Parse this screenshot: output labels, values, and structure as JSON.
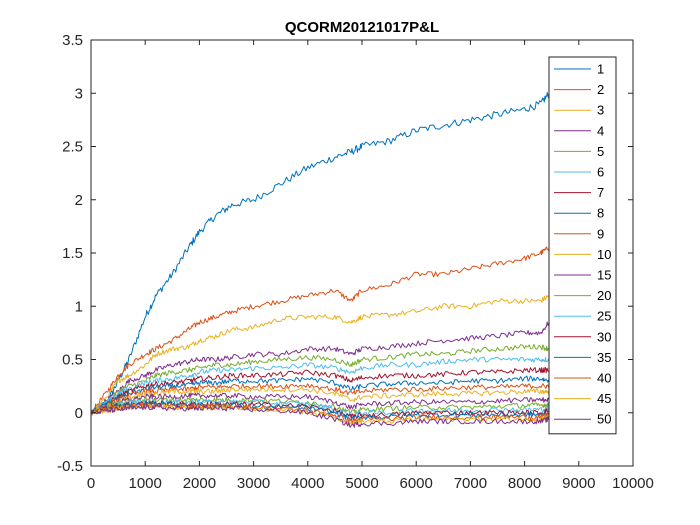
{
  "chart_data": {
    "type": "line",
    "title": "QCORM20121017P&L",
    "xlabel": "",
    "ylabel": "",
    "xlim": [
      0,
      10000
    ],
    "ylim": [
      -0.5,
      3.5
    ],
    "x_ticks": [
      0,
      1000,
      2000,
      3000,
      4000,
      5000,
      6000,
      7000,
      8000,
      9000,
      10000
    ],
    "y_ticks": [
      -0.5,
      0,
      0.5,
      1,
      1.5,
      2,
      2.5,
      3,
      3.5
    ],
    "x_tick_labels": [
      "0",
      "1000",
      "2000",
      "3000",
      "4000",
      "5000",
      "6000",
      "7000",
      "8000",
      "9000",
      "10000"
    ],
    "y_tick_labels": [
      "-0.5",
      "0",
      "0.5",
      "1",
      "1.5",
      "2",
      "2.5",
      "3",
      "3.5"
    ],
    "grid": false,
    "legend_position": "top-right",
    "x": [
      0,
      300,
      500,
      700,
      1000,
      1200,
      1500,
      1800,
      2000,
      2300,
      2600,
      3000,
      3500,
      4000,
      4500,
      4800,
      5000,
      5500,
      6000,
      6500,
      7000,
      7500,
      8000,
      8300,
      8450
    ],
    "series": [
      {
        "name": "1",
        "color": "#0072BD",
        "values": [
          0,
          0.1,
          0.3,
          0.5,
          0.9,
          1.1,
          1.3,
          1.55,
          1.7,
          1.85,
          1.95,
          2.0,
          2.15,
          2.3,
          2.4,
          2.45,
          2.5,
          2.55,
          2.65,
          2.7,
          2.75,
          2.8,
          2.85,
          2.9,
          3.0
        ]
      },
      {
        "name": "2",
        "color": "#D95319",
        "values": [
          0,
          0.2,
          0.35,
          0.45,
          0.55,
          0.6,
          0.68,
          0.78,
          0.85,
          0.9,
          0.95,
          1.0,
          1.05,
          1.1,
          1.15,
          1.05,
          1.15,
          1.2,
          1.3,
          1.3,
          1.35,
          1.4,
          1.45,
          1.5,
          1.55
        ]
      },
      {
        "name": "3",
        "color": "#EDB120",
        "values": [
          0,
          0.15,
          0.3,
          0.35,
          0.45,
          0.55,
          0.6,
          0.62,
          0.68,
          0.72,
          0.78,
          0.8,
          0.88,
          0.9,
          0.9,
          0.85,
          0.9,
          0.92,
          0.95,
          1.0,
          1.0,
          1.05,
          1.05,
          1.05,
          1.1
        ]
      },
      {
        "name": "4",
        "color": "#7E2F8E",
        "values": [
          0,
          0.12,
          0.2,
          0.3,
          0.35,
          0.4,
          0.45,
          0.48,
          0.5,
          0.5,
          0.52,
          0.55,
          0.55,
          0.6,
          0.6,
          0.55,
          0.6,
          0.62,
          0.65,
          0.68,
          0.7,
          0.72,
          0.75,
          0.75,
          0.85
        ]
      },
      {
        "name": "5",
        "color": "#77AC30",
        "values": [
          0,
          0.1,
          0.2,
          0.25,
          0.3,
          0.35,
          0.38,
          0.4,
          0.42,
          0.45,
          0.45,
          0.48,
          0.5,
          0.52,
          0.5,
          0.45,
          0.5,
          0.52,
          0.55,
          0.55,
          0.58,
          0.6,
          0.62,
          0.62,
          0.6
        ]
      },
      {
        "name": "6",
        "color": "#4DBEEE",
        "values": [
          0,
          0.1,
          0.18,
          0.22,
          0.28,
          0.3,
          0.32,
          0.35,
          0.38,
          0.4,
          0.4,
          0.42,
          0.42,
          0.45,
          0.42,
          0.38,
          0.42,
          0.45,
          0.45,
          0.48,
          0.5,
          0.5,
          0.5,
          0.5,
          0.5
        ]
      },
      {
        "name": "7",
        "color": "#A2142F",
        "values": [
          0,
          0.08,
          0.15,
          0.2,
          0.25,
          0.27,
          0.28,
          0.3,
          0.32,
          0.33,
          0.35,
          0.35,
          0.36,
          0.38,
          0.35,
          0.3,
          0.33,
          0.35,
          0.35,
          0.36,
          0.38,
          0.38,
          0.4,
          0.4,
          0.4
        ]
      },
      {
        "name": "8",
        "color": "#0072BD",
        "values": [
          0,
          0.08,
          0.14,
          0.18,
          0.22,
          0.24,
          0.25,
          0.26,
          0.28,
          0.28,
          0.3,
          0.3,
          0.3,
          0.32,
          0.28,
          0.22,
          0.25,
          0.27,
          0.28,
          0.28,
          0.3,
          0.3,
          0.32,
          0.32,
          0.3
        ]
      },
      {
        "name": "9",
        "color": "#D95319",
        "values": [
          0,
          0.07,
          0.12,
          0.16,
          0.2,
          0.2,
          0.22,
          0.22,
          0.24,
          0.24,
          0.25,
          0.25,
          0.25,
          0.26,
          0.22,
          0.18,
          0.2,
          0.22,
          0.22,
          0.23,
          0.24,
          0.24,
          0.25,
          0.25,
          0.25
        ]
      },
      {
        "name": "10",
        "color": "#EDB120",
        "values": [
          0,
          0.06,
          0.1,
          0.14,
          0.18,
          0.18,
          0.2,
          0.2,
          0.2,
          0.2,
          0.22,
          0.22,
          0.22,
          0.22,
          0.18,
          0.12,
          0.15,
          0.16,
          0.17,
          0.18,
          0.18,
          0.19,
          0.2,
          0.2,
          0.2
        ]
      },
      {
        "name": "15",
        "color": "#7E2F8E",
        "values": [
          0,
          0.05,
          0.1,
          0.12,
          0.15,
          0.15,
          0.15,
          0.16,
          0.16,
          0.16,
          0.16,
          0.15,
          0.15,
          0.15,
          0.1,
          0.05,
          0.08,
          0.09,
          0.1,
          0.1,
          0.1,
          0.11,
          0.12,
          0.12,
          0.12
        ]
      },
      {
        "name": "20",
        "color": "#77AC30",
        "values": [
          0,
          0.05,
          0.08,
          0.1,
          0.12,
          0.12,
          0.12,
          0.12,
          0.12,
          0.12,
          0.12,
          0.12,
          0.11,
          0.1,
          0.06,
          0.0,
          0.03,
          0.04,
          0.05,
          0.05,
          0.05,
          0.06,
          0.07,
          0.07,
          0.08
        ]
      },
      {
        "name": "25",
        "color": "#4DBEEE",
        "values": [
          0,
          0.04,
          0.08,
          0.1,
          0.1,
          0.1,
          0.1,
          0.1,
          0.1,
          0.1,
          0.1,
          0.1,
          0.09,
          0.08,
          0.04,
          -0.02,
          0.0,
          0.0,
          0.02,
          0.02,
          0.02,
          0.03,
          0.03,
          0.03,
          0.04
        ]
      },
      {
        "name": "30",
        "color": "#A2142F",
        "values": [
          0,
          0.04,
          0.07,
          0.08,
          0.09,
          0.09,
          0.08,
          0.08,
          0.08,
          0.08,
          0.08,
          0.08,
          0.07,
          0.06,
          0.02,
          -0.04,
          -0.02,
          -0.02,
          0.0,
          0.0,
          0.0,
          0.0,
          0.0,
          0.0,
          0.02
        ]
      },
      {
        "name": "35",
        "color": "#0072BD",
        "values": [
          0,
          0.03,
          0.06,
          0.07,
          0.08,
          0.08,
          0.07,
          0.07,
          0.07,
          0.07,
          0.07,
          0.06,
          0.05,
          0.04,
          0.0,
          -0.06,
          -0.04,
          -0.04,
          -0.02,
          -0.02,
          -0.02,
          -0.02,
          -0.02,
          -0.02,
          0.0
        ]
      },
      {
        "name": "40",
        "color": "#D95319",
        "values": [
          0,
          0.03,
          0.05,
          0.06,
          0.07,
          0.07,
          0.06,
          0.06,
          0.06,
          0.06,
          0.06,
          0.05,
          0.04,
          0.02,
          -0.02,
          -0.08,
          -0.06,
          -0.06,
          -0.04,
          -0.04,
          -0.04,
          -0.04,
          -0.04,
          -0.04,
          -0.02
        ]
      },
      {
        "name": "45",
        "color": "#EDB120",
        "values": [
          0,
          0.02,
          0.04,
          0.05,
          0.06,
          0.06,
          0.05,
          0.05,
          0.05,
          0.05,
          0.05,
          0.04,
          0.03,
          0.01,
          -0.04,
          -0.1,
          -0.08,
          -0.08,
          -0.06,
          -0.06,
          -0.06,
          -0.06,
          -0.06,
          -0.06,
          -0.04
        ]
      },
      {
        "name": "50",
        "color": "#7E2F8E",
        "values": [
          0,
          0.02,
          0.03,
          0.04,
          0.05,
          0.05,
          0.04,
          0.04,
          0.04,
          0.04,
          0.04,
          0.03,
          0.02,
          0.0,
          -0.06,
          -0.12,
          -0.1,
          -0.1,
          -0.08,
          -0.08,
          -0.08,
          -0.08,
          -0.08,
          -0.08,
          -0.06
        ]
      }
    ]
  }
}
